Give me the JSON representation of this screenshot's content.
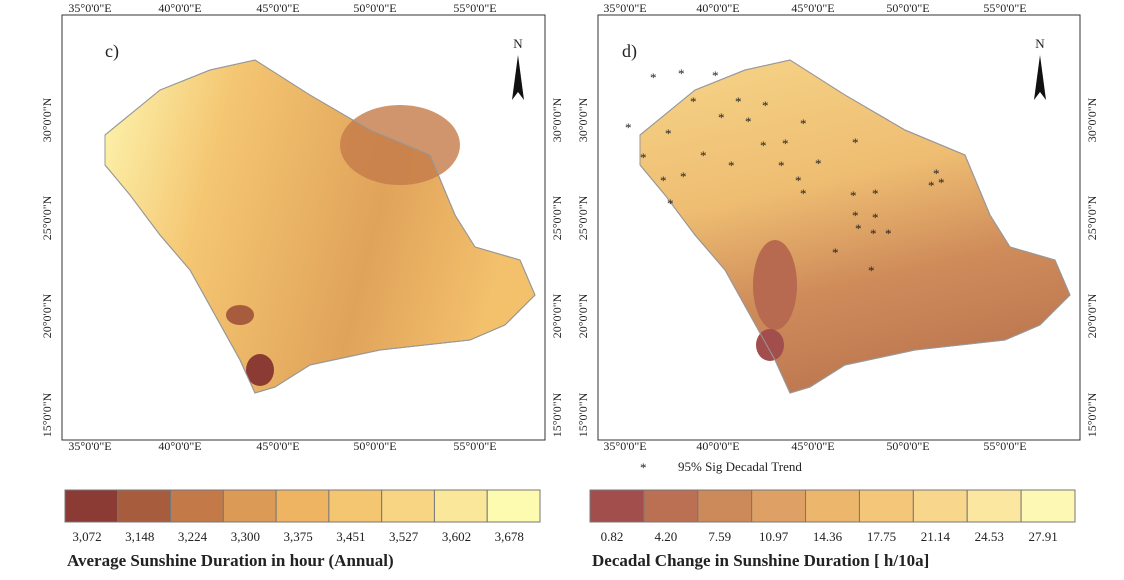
{
  "north": "N",
  "sig_legend": "95% Sig Decadal Trend",
  "panels": [
    {
      "label": "c)",
      "lon_ticks": [
        "35°0'0\"E",
        "40°0'0\"E",
        "45°0'0\"E",
        "50°0'0\"E",
        "55°0'0\"E"
      ],
      "lat_ticks": [
        "30°0'0\"N",
        "25°0'0\"N",
        "20°0'0\"N",
        "15°0'0\"N"
      ],
      "legend": {
        "title": "Average Sunshine Duration in hour (Annual)",
        "breaks": [
          "3,072",
          "3,148",
          "3,224",
          "3,300",
          "3,375",
          "3,451",
          "3,527",
          "3,602",
          "3,678"
        ],
        "colors": [
          "#8c3a34",
          "#a85c3e",
          "#c47a48",
          "#db9a55",
          "#eeb462",
          "#f5c672",
          "#f8d583",
          "#fae79a",
          "#fdfbb0"
        ]
      }
    },
    {
      "label": "d)",
      "lon_ticks": [
        "35°0'0\"E",
        "40°0'0\"E",
        "45°0'0\"E",
        "50°0'0\"E",
        "55°0'0\"E"
      ],
      "lat_ticks": [
        "30°0'0\"N",
        "25°0'0\"N",
        "20°0'0\"N",
        "15°0'0\"N"
      ],
      "legend": {
        "title": "Decadal Change in Sunshine Duration [ h/10a]",
        "breaks": [
          "0.82",
          "4.20",
          "7.59",
          "10.97",
          "14.36",
          "17.75",
          "21.14",
          "24.53",
          "27.91"
        ],
        "colors": [
          "#a24e4c",
          "#bb7054",
          "#cc8a5a",
          "#dea064",
          "#ecb66c",
          "#f3c67a",
          "#f8d68b",
          "#fbe79f",
          "#fdf8b4"
        ]
      }
    }
  ]
}
